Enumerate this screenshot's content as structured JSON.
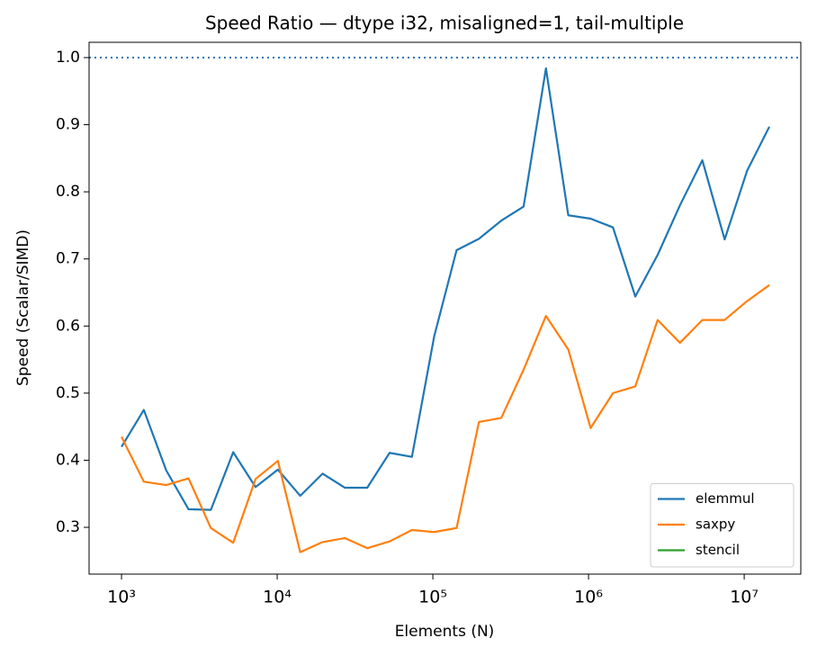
{
  "chart_data": {
    "type": "line",
    "title": "Speed Ratio — dtype i32, misaligned=1, tail-multiple",
    "xlabel": "Elements (N)",
    "ylabel": "Speed (Scalar/SIMD)",
    "x": [
      1000,
      1391,
      1936,
      2695,
      3750,
      5218,
      7261,
      10104,
      14060,
      19565,
      27227,
      37888,
      52723,
      73367,
      102094,
      142070,
      197697,
      275106,
      382825,
      532722,
      741310,
      1031570,
      1435489,
      1997559,
      2779713,
      3868121,
      5382698,
      7490346,
      10423174,
      14504391
    ],
    "series": [
      {
        "name": "elemmul",
        "color": "#1f77b4",
        "values": [
          0.42,
          0.475,
          0.385,
          0.327,
          0.326,
          0.412,
          0.36,
          0.386,
          0.347,
          0.38,
          0.359,
          0.359,
          0.411,
          0.405,
          0.585,
          0.713,
          0.73,
          0.757,
          0.778,
          0.984,
          0.765,
          0.76,
          0.747,
          0.644,
          0.706,
          0.78,
          0.847,
          0.729,
          0.831,
          0.897
        ]
      },
      {
        "name": "saxpy",
        "color": "#ff7f0e",
        "values": [
          0.435,
          0.368,
          0.363,
          0.373,
          0.299,
          0.277,
          0.372,
          0.399,
          0.263,
          0.278,
          0.284,
          0.269,
          0.279,
          0.296,
          0.293,
          0.299,
          0.457,
          0.463,
          0.535,
          0.615,
          0.565,
          0.448,
          0.5,
          0.51,
          0.609,
          0.575,
          0.609,
          0.609,
          0.637,
          0.661
        ]
      },
      {
        "name": "stencil",
        "color": "#2ca02c",
        "values": [
          null,
          null,
          null,
          null,
          null,
          null,
          null,
          null,
          null,
          null,
          null,
          null,
          null,
          null,
          null,
          null,
          null,
          null,
          null,
          null,
          null,
          null,
          null,
          null,
          null,
          null,
          null,
          null,
          null,
          null
        ]
      }
    ],
    "xscale": "log",
    "xlim": [
      619,
      23100000
    ],
    "xticks": [
      {
        "value": 1000,
        "label": "10³"
      },
      {
        "value": 10000,
        "label": "10⁴"
      },
      {
        "value": 100000,
        "label": "10⁵"
      },
      {
        "value": 1000000,
        "label": "10⁶"
      },
      {
        "value": 10000000,
        "label": "10⁷"
      }
    ],
    "ylim": [
      0.2303,
      1.0228
    ],
    "yticks": [
      0.3,
      0.4,
      0.5,
      0.6,
      0.7,
      0.8,
      0.9,
      {
        "value": 1,
        "label": "1.0"
      }
    ],
    "hline": {
      "value": 1,
      "color": "#1f77b4",
      "style": "dotted"
    },
    "legend": "lower right"
  }
}
